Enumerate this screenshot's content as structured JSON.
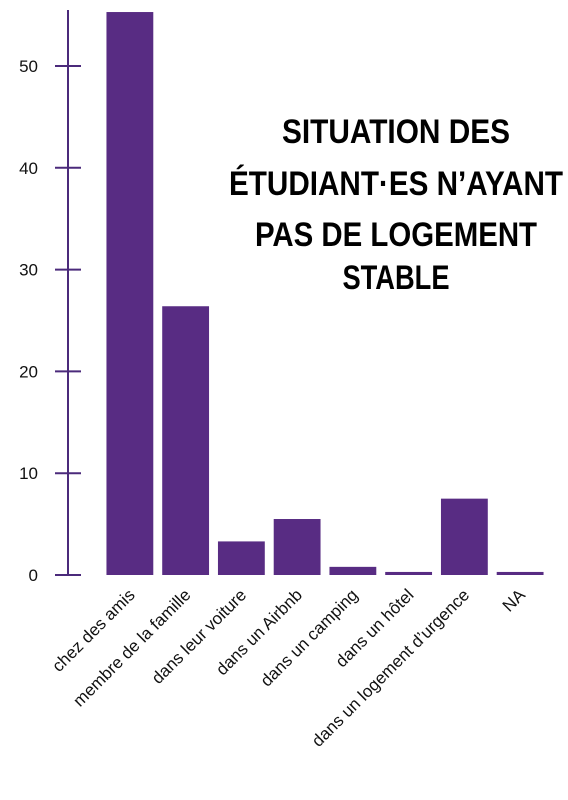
{
  "chart_data": {
    "type": "bar",
    "title": [
      "SITUATION DES",
      "ÉTUDIANT·ES N’AYANT",
      "PAS DE LOGEMENT",
      "STABLE"
    ],
    "categories": [
      "chez des amis",
      "membre de la famille",
      "dans leur voiture",
      "dans un Airbnb",
      "dans un camping",
      "dans un hôtel",
      "dans un logement d’urgence",
      "NA"
    ],
    "values": [
      55.3,
      26.4,
      3.3,
      5.5,
      0.8,
      0.3,
      7.5,
      0.3
    ],
    "color": "#582c83",
    "ylim": [
      0,
      55.5
    ],
    "yticks": [
      0,
      10,
      20,
      30,
      40,
      50
    ],
    "grid": false
  }
}
